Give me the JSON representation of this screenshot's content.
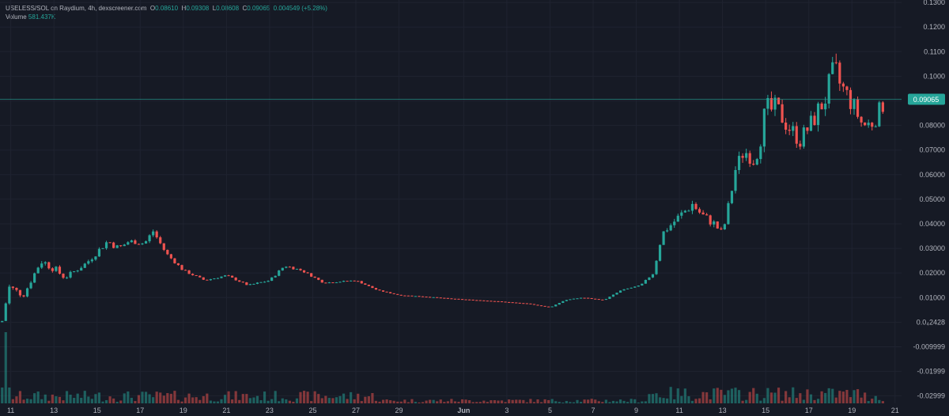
{
  "header": {
    "pair_label": "USELESS/SOL on Raydium, 4h, dexscreener.com",
    "o_label": "O",
    "o": "0.08610",
    "h_label": "H",
    "h": "0.09308",
    "l_label": "L",
    "l": "0.08608",
    "c_label": "C",
    "c": "0.09065",
    "change": "0.004549 (+5.28%)",
    "volume_label": "Volume",
    "volume": "581.437K"
  },
  "colors": {
    "background": "#161a25",
    "grid": "#1f2330",
    "up": "#26a69a",
    "down": "#ef5350",
    "text": "#b2b5be",
    "price_line": "#26a69a"
  },
  "chart_data": {
    "type": "candlestick",
    "interval": "4h",
    "y_ticks": [
      "0.1300",
      "0.1200",
      "0.1100",
      "0.1000",
      "0.09000",
      "0.08000",
      "0.07000",
      "0.06000",
      "0.05000",
      "0.04000",
      "0.03000",
      "0.02000",
      "0.01000",
      "0.0₄2428",
      "-0.009999",
      "-0.01999",
      "-0.02999"
    ],
    "y_tick_values": [
      0.13,
      0.12,
      0.11,
      0.1,
      0.09,
      0.08,
      0.07,
      0.06,
      0.05,
      0.04,
      0.03,
      0.02,
      0.01,
      0.0,
      -0.01,
      -0.02,
      -0.03
    ],
    "ylim": [
      -0.033,
      0.131
    ],
    "x_ticks": [
      "11",
      "13",
      "15",
      "17",
      "19",
      "21",
      "23",
      "25",
      "27",
      "29",
      "Jun",
      "3",
      "5",
      "7",
      "9",
      "11",
      "13",
      "15",
      "17",
      "19",
      "21"
    ],
    "x_tick_days": [
      11,
      13,
      15,
      17,
      19,
      21,
      23,
      25,
      27,
      29,
      32,
      34,
      36,
      38,
      40,
      42,
      44,
      46,
      48,
      50,
      52
    ],
    "x_range_days": [
      10.5,
      52.3
    ],
    "last_price": 0.09065,
    "last_price_label": "0.09065",
    "anchors": [
      [
        10.6,
        0.0,
        0.2
      ],
      [
        10.9,
        0.014,
        1.0
      ],
      [
        11.6,
        0.011,
        0.25
      ],
      [
        12.4,
        0.025,
        0.3
      ],
      [
        13.0,
        0.022,
        0.3
      ],
      [
        13.5,
        0.018,
        0.2
      ],
      [
        14.5,
        0.024,
        0.2
      ],
      [
        15.5,
        0.033,
        0.15
      ],
      [
        16.0,
        0.03,
        0.2
      ],
      [
        16.5,
        0.033,
        0.1
      ],
      [
        17.2,
        0.032,
        0.15
      ],
      [
        17.6,
        0.037,
        0.15
      ],
      [
        18.2,
        0.028,
        0.1
      ],
      [
        19.0,
        0.021,
        0.1
      ],
      [
        20.0,
        0.017,
        0.08
      ],
      [
        21.0,
        0.019,
        0.08
      ],
      [
        22.0,
        0.015,
        0.08
      ],
      [
        23.0,
        0.017,
        0.1
      ],
      [
        23.7,
        0.023,
        0.1
      ],
      [
        24.5,
        0.021,
        0.08
      ],
      [
        25.5,
        0.016,
        0.06
      ],
      [
        27.0,
        0.017,
        0.06
      ],
      [
        28.0,
        0.013,
        0.04
      ],
      [
        29.0,
        0.011,
        0.03
      ],
      [
        30.0,
        0.0105,
        0.03
      ],
      [
        31.5,
        0.0095,
        0.02
      ],
      [
        32.5,
        0.009,
        0.02
      ],
      [
        33.5,
        0.0085,
        0.02
      ],
      [
        35.0,
        0.0075,
        0.02
      ],
      [
        36.0,
        0.006,
        0.02
      ],
      [
        36.7,
        0.009,
        0.03
      ],
      [
        37.5,
        0.01,
        0.03
      ],
      [
        38.5,
        0.009,
        0.02
      ],
      [
        39.3,
        0.013,
        0.03
      ],
      [
        40.2,
        0.015,
        0.04
      ],
      [
        40.8,
        0.02,
        0.1
      ],
      [
        41.2,
        0.036,
        0.15
      ],
      [
        42.0,
        0.043,
        0.2
      ],
      [
        42.6,
        0.048,
        0.2
      ],
      [
        43.0,
        0.044,
        0.15
      ],
      [
        43.6,
        0.04,
        0.2
      ],
      [
        44.0,
        0.036,
        0.15
      ],
      [
        44.3,
        0.048,
        0.2
      ],
      [
        44.6,
        0.062,
        0.2
      ],
      [
        45.0,
        0.07,
        0.2
      ],
      [
        45.5,
        0.065,
        0.15
      ],
      [
        46.0,
        0.085,
        0.3
      ],
      [
        46.5,
        0.087,
        0.2
      ],
      [
        47.0,
        0.08,
        0.2
      ],
      [
        47.6,
        0.074,
        0.2
      ],
      [
        48.2,
        0.082,
        0.2
      ],
      [
        48.8,
        0.092,
        0.25
      ],
      [
        49.2,
        0.1,
        0.35
      ],
      [
        49.5,
        0.096,
        0.2
      ],
      [
        50.0,
        0.089,
        0.2
      ],
      [
        50.5,
        0.08,
        0.15
      ],
      [
        51.0,
        0.081,
        0.15
      ],
      [
        51.5,
        0.09,
        0.2
      ]
    ],
    "volume_note": "volume histogram at bottom, largest bar at start of series"
  }
}
